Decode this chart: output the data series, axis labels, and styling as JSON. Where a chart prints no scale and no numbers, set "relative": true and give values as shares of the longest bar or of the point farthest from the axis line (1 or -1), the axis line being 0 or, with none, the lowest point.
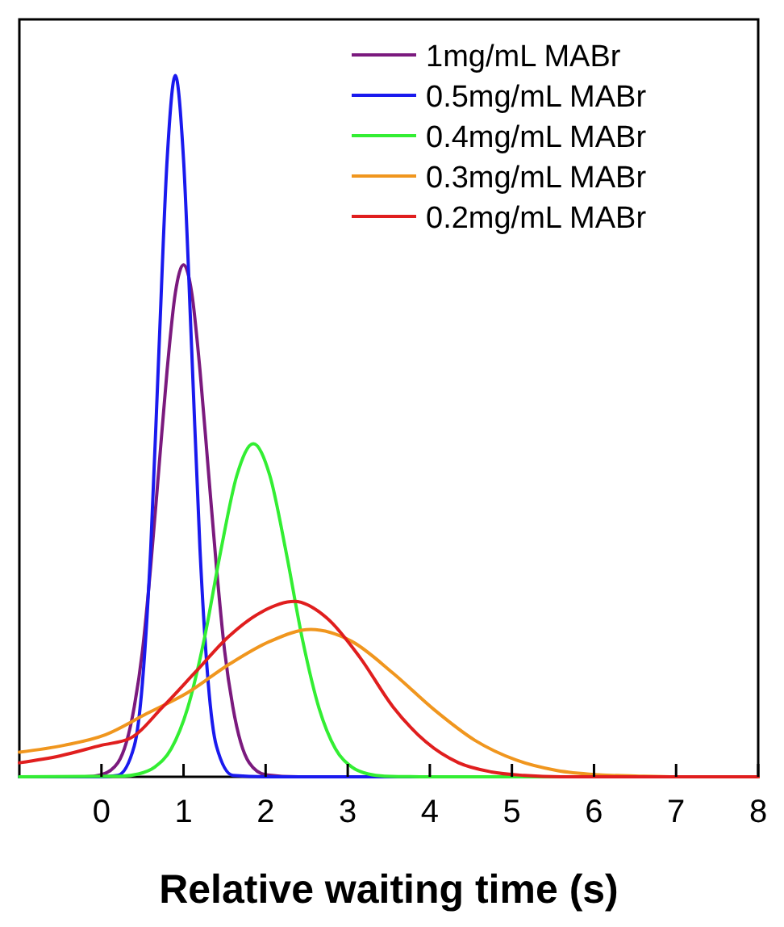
{
  "chart_data": {
    "type": "line",
    "xlabel": "Relative waiting time (s)",
    "relative": true,
    "xlim": [
      -1,
      8
    ],
    "xticks": [
      0,
      1,
      2,
      3,
      4,
      5,
      6,
      7,
      8
    ],
    "legend": "top right",
    "grid": false,
    "series": [
      {
        "name": "1mg/mL MABr",
        "color": "#7b1a7e",
        "x": [
          -1,
          -0.2,
          0,
          0.2,
          0.4,
          0.5,
          0.6,
          0.7,
          0.8,
          0.9,
          1.0,
          1.1,
          1.2,
          1.3,
          1.4,
          1.5,
          1.6,
          1.8,
          2.0,
          2.4,
          8
        ],
        "values": [
          0,
          0,
          0.003,
          0.02,
          0.1,
          0.18,
          0.3,
          0.44,
          0.58,
          0.69,
          0.73,
          0.69,
          0.58,
          0.44,
          0.3,
          0.18,
          0.1,
          0.02,
          0.003,
          0,
          0
        ]
      },
      {
        "name": "0.5mg/mL MABr",
        "color": "#1a1aee",
        "x": [
          -1,
          0,
          0.2,
          0.4,
          0.5,
          0.6,
          0.7,
          0.8,
          0.9,
          1.0,
          1.1,
          1.2,
          1.3,
          1.4,
          1.6,
          2,
          8
        ],
        "values": [
          0,
          0,
          0.002,
          0.044,
          0.135,
          0.325,
          0.607,
          0.88,
          1,
          0.88,
          0.607,
          0.325,
          0.135,
          0.044,
          0.002,
          0,
          0
        ]
      },
      {
        "name": "0.4mg/mL MABr",
        "color": "#33ee33",
        "x": [
          -1,
          0.25,
          0.45,
          0.65,
          0.85,
          1.05,
          1.25,
          1.45,
          1.65,
          1.85,
          2.05,
          2.25,
          2.45,
          2.65,
          2.85,
          3.05,
          3.25,
          3.45,
          4,
          8
        ],
        "values": [
          0,
          0.001,
          0.004,
          0.014,
          0.04,
          0.098,
          0.195,
          0.32,
          0.43,
          0.475,
          0.43,
          0.32,
          0.195,
          0.098,
          0.04,
          0.014,
          0.004,
          0.001,
          0,
          0
        ]
      },
      {
        "name": "0.3mg/mL MABr",
        "color": "#f0961e",
        "x": [
          -1,
          -0.45,
          0.05,
          0.55,
          1.05,
          1.55,
          2.05,
          2.55,
          3.05,
          3.55,
          4.05,
          4.55,
          5.05,
          5.55,
          6.05,
          6.55,
          7,
          8
        ],
        "values": [
          0.035,
          0.045,
          0.06,
          0.09,
          0.12,
          0.16,
          0.193,
          0.21,
          0.193,
          0.148,
          0.096,
          0.052,
          0.024,
          0.009,
          0.003,
          0.001,
          0,
          0
        ]
      },
      {
        "name": "0.2mg/mL MABr",
        "color": "#e01e1e",
        "x": [
          -1,
          -0.5,
          0,
          0.35,
          0.75,
          1.15,
          1.55,
          1.95,
          2.35,
          2.75,
          3.15,
          3.55,
          3.95,
          4.35,
          4.75,
          5.15,
          5.6,
          8
        ],
        "values": [
          0.02,
          0.03,
          0.045,
          0.055,
          0.1,
          0.15,
          0.2,
          0.235,
          0.25,
          0.226,
          0.17,
          0.1,
          0.05,
          0.02,
          0.007,
          0.002,
          0,
          0
        ]
      }
    ]
  }
}
